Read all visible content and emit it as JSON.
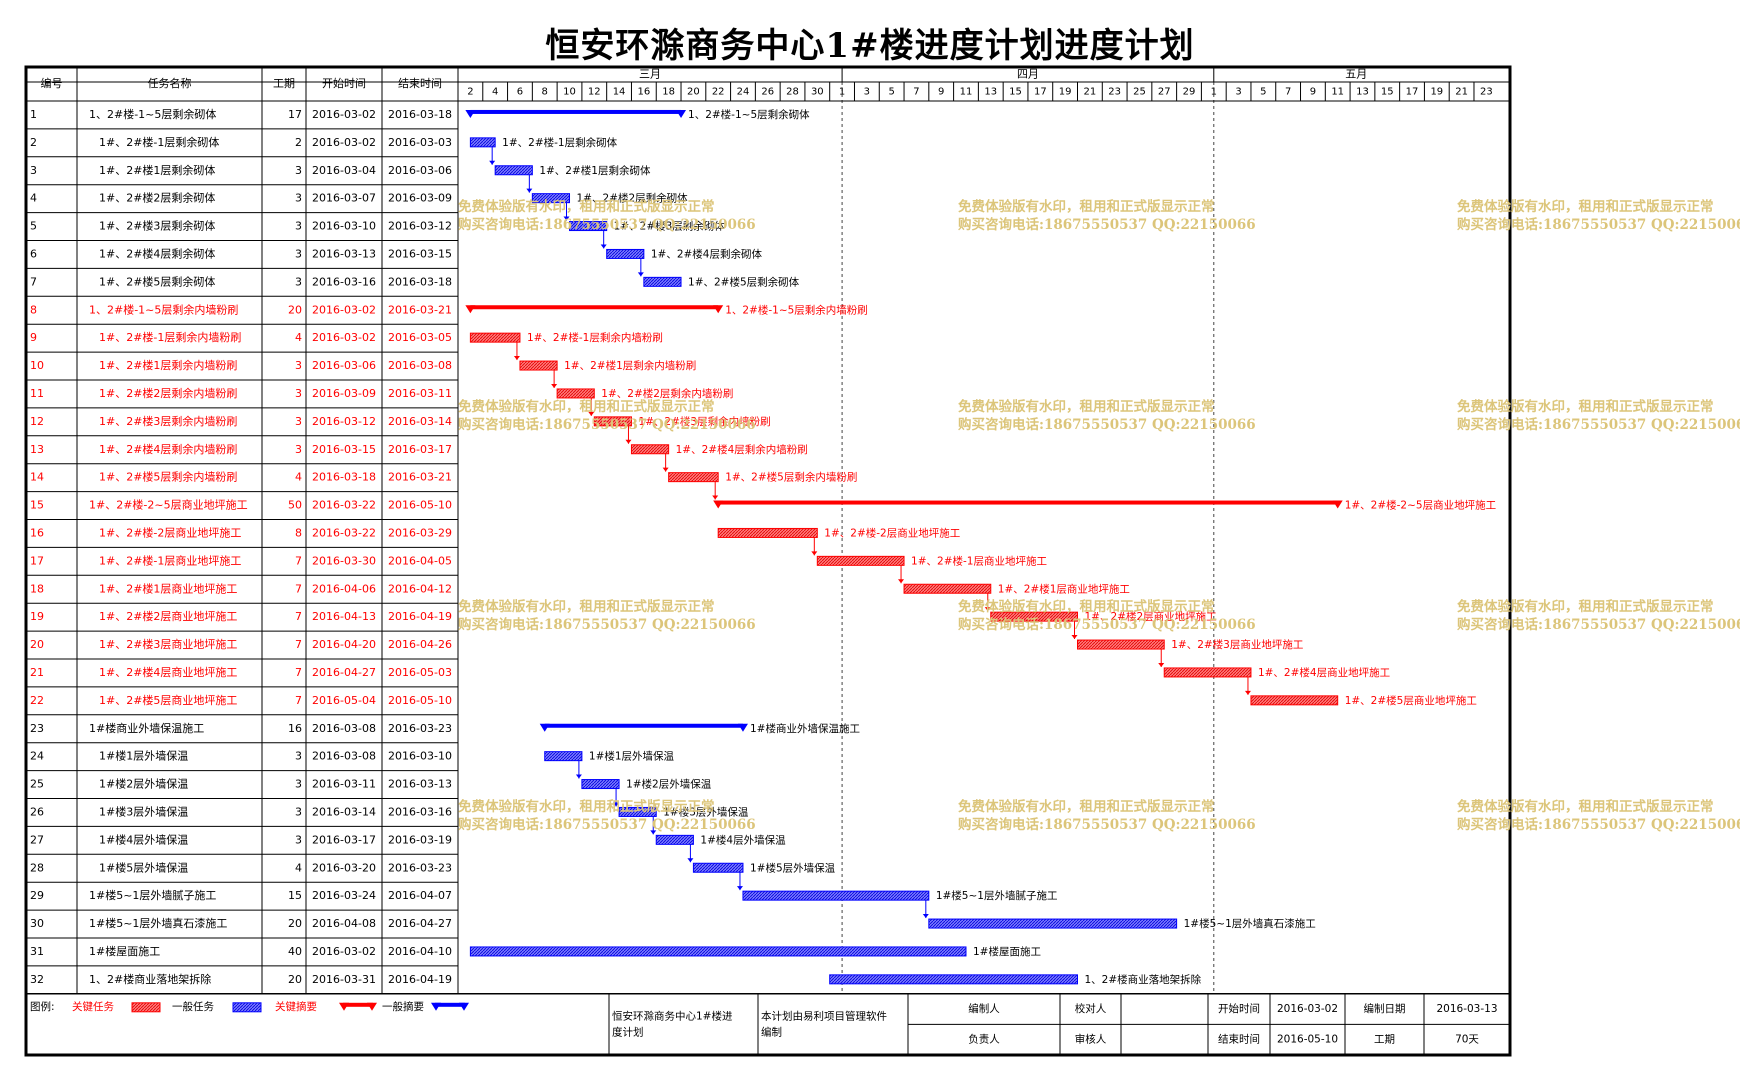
{
  "title": "恒安环滁商务中心1#楼进度计划进度计划",
  "colors": {
    "critical": "#ff0000",
    "normal": "#0000ff",
    "critical_fill": "#ff6f6f",
    "normal_fill": "#6f6fff",
    "watermark": "#dcc57a"
  },
  "table": {
    "headers": {
      "id": "编号",
      "name": "任务名称",
      "duration": "工期",
      "start": "开始时间",
      "end": "结束时间"
    }
  },
  "timescale": {
    "months": [
      "三月",
      "四月",
      "五月"
    ],
    "day_labels": [
      "2",
      "4",
      "6",
      "8",
      "10",
      "12",
      "14",
      "16",
      "18",
      "20",
      "22",
      "24",
      "26",
      "28",
      "30",
      "1",
      "3",
      "5",
      "7",
      "9",
      "11",
      "13",
      "15",
      "17",
      "19",
      "21",
      "23",
      "25",
      "27",
      "29",
      "1",
      "3",
      "5",
      "7",
      "9",
      "11",
      "13",
      "15",
      "17",
      "19",
      "21",
      "23"
    ]
  },
  "chart_data": {
    "type": "gantt",
    "title": "恒安环滁商务中心1#楼进度计划进度计划",
    "x_axis": {
      "start": "2016-03-01",
      "end": "2016-05-24",
      "unit": "day"
    },
    "tasks": [
      {
        "id": "1",
        "name": "1、2#楼-1~5层剩余砌体",
        "duration": 17,
        "start": "2016-03-02",
        "end": "2016-03-18",
        "critical": false,
        "summary": true,
        "indent": 0,
        "bar_label": "1、2#楼-1~5层剩余砌体"
      },
      {
        "id": "2",
        "name": "1#、2#楼-1层剩余砌体",
        "duration": 2,
        "start": "2016-03-02",
        "end": "2016-03-03",
        "critical": false,
        "summary": false,
        "indent": 1,
        "bar_label": "1#、2#楼-1层剩余砌体"
      },
      {
        "id": "3",
        "name": "1#、2#楼1层剩余砌体",
        "duration": 3,
        "start": "2016-03-04",
        "end": "2016-03-06",
        "critical": false,
        "summary": false,
        "indent": 1,
        "bar_label": "1#、2#楼1层剩余砌体"
      },
      {
        "id": "4",
        "name": "1#、2#楼2层剩余砌体",
        "duration": 3,
        "start": "2016-03-07",
        "end": "2016-03-09",
        "critical": false,
        "summary": false,
        "indent": 1,
        "bar_label": "1#、2#楼2层剩余砌体"
      },
      {
        "id": "5",
        "name": "1#、2#楼3层剩余砌体",
        "duration": 3,
        "start": "2016-03-10",
        "end": "2016-03-12",
        "critical": false,
        "summary": false,
        "indent": 1,
        "bar_label": "1#、2#楼3层剩余砌体"
      },
      {
        "id": "6",
        "name": "1#、2#楼4层剩余砌体",
        "duration": 3,
        "start": "2016-03-13",
        "end": "2016-03-15",
        "critical": false,
        "summary": false,
        "indent": 1,
        "bar_label": "1#、2#楼4层剩余砌体"
      },
      {
        "id": "7",
        "name": "1#、2#楼5层剩余砌体",
        "duration": 3,
        "start": "2016-03-16",
        "end": "2016-03-18",
        "critical": false,
        "summary": false,
        "indent": 1,
        "bar_label": "1#、2#楼5层剩余砌体"
      },
      {
        "id": "8",
        "name": "1、2#楼-1~5层剩余内墙粉刷",
        "duration": 20,
        "start": "2016-03-02",
        "end": "2016-03-21",
        "critical": true,
        "summary": true,
        "indent": 0,
        "bar_label": "1、2#楼-1~5层剩余内墙粉刷"
      },
      {
        "id": "9",
        "name": "1#、2#楼-1层剩余内墙粉刷",
        "duration": 4,
        "start": "2016-03-02",
        "end": "2016-03-05",
        "critical": true,
        "summary": false,
        "indent": 1,
        "bar_label": "1#、2#楼-1层剩余内墙粉刷"
      },
      {
        "id": "10",
        "name": "1#、2#楼1层剩余内墙粉刷",
        "duration": 3,
        "start": "2016-03-06",
        "end": "2016-03-08",
        "critical": true,
        "summary": false,
        "indent": 1,
        "bar_label": "1#、2#楼1层剩余内墙粉刷"
      },
      {
        "id": "11",
        "name": "1#、2#楼2层剩余内墙粉刷",
        "duration": 3,
        "start": "2016-03-09",
        "end": "2016-03-11",
        "critical": true,
        "summary": false,
        "indent": 1,
        "bar_label": "1#、2#楼2层剩余内墙粉刷"
      },
      {
        "id": "12",
        "name": "1#、2#楼3层剩余内墙粉刷",
        "duration": 3,
        "start": "2016-03-12",
        "end": "2016-03-14",
        "critical": true,
        "summary": false,
        "indent": 1,
        "bar_label": "1#、2#楼3层剩余内墙粉刷"
      },
      {
        "id": "13",
        "name": "1#、2#楼4层剩余内墙粉刷",
        "duration": 3,
        "start": "2016-03-15",
        "end": "2016-03-17",
        "critical": true,
        "summary": false,
        "indent": 1,
        "bar_label": "1#、2#楼4层剩余内墙粉刷"
      },
      {
        "id": "14",
        "name": "1#、2#楼5层剩余内墙粉刷",
        "duration": 4,
        "start": "2016-03-18",
        "end": "2016-03-21",
        "critical": true,
        "summary": false,
        "indent": 1,
        "bar_label": "1#、2#楼5层剩余内墙粉刷"
      },
      {
        "id": "15",
        "name": "1#、2#楼-2~5层商业地坪施工",
        "duration": 50,
        "start": "2016-03-22",
        "end": "2016-05-10",
        "critical": true,
        "summary": true,
        "indent": 0,
        "bar_label": "1#、2#楼-2~5层商业地坪施工"
      },
      {
        "id": "16",
        "name": "1#、2#楼-2层商业地坪施工",
        "duration": 8,
        "start": "2016-03-22",
        "end": "2016-03-29",
        "critical": true,
        "summary": false,
        "indent": 1,
        "bar_label": "1#、2#楼-2层商业地坪施工"
      },
      {
        "id": "17",
        "name": "1#、2#楼-1层商业地坪施工",
        "duration": 7,
        "start": "2016-03-30",
        "end": "2016-04-05",
        "critical": true,
        "summary": false,
        "indent": 1,
        "bar_label": "1#、2#楼-1层商业地坪施工"
      },
      {
        "id": "18",
        "name": "1#、2#楼1层商业地坪施工",
        "duration": 7,
        "start": "2016-04-06",
        "end": "2016-04-12",
        "critical": true,
        "summary": false,
        "indent": 1,
        "bar_label": "1#、2#楼1层商业地坪施工"
      },
      {
        "id": "19",
        "name": "1#、2#楼2层商业地坪施工",
        "duration": 7,
        "start": "2016-04-13",
        "end": "2016-04-19",
        "critical": true,
        "summary": false,
        "indent": 1,
        "bar_label": "1#、2#楼2层商业地坪施工"
      },
      {
        "id": "20",
        "name": "1#、2#楼3层商业地坪施工",
        "duration": 7,
        "start": "2016-04-20",
        "end": "2016-04-26",
        "critical": true,
        "summary": false,
        "indent": 1,
        "bar_label": "1#、2#楼3层商业地坪施工"
      },
      {
        "id": "21",
        "name": "1#、2#楼4层商业地坪施工",
        "duration": 7,
        "start": "2016-04-27",
        "end": "2016-05-03",
        "critical": true,
        "summary": false,
        "indent": 1,
        "bar_label": "1#、2#楼4层商业地坪施工"
      },
      {
        "id": "22",
        "name": "1#、2#楼5层商业地坪施工",
        "duration": 7,
        "start": "2016-05-04",
        "end": "2016-05-10",
        "critical": true,
        "summary": false,
        "indent": 1,
        "bar_label": "1#、2#楼5层商业地坪施工"
      },
      {
        "id": "23",
        "name": "1#楼商业外墙保温施工",
        "duration": 16,
        "start": "2016-03-08",
        "end": "2016-03-23",
        "critical": false,
        "summary": true,
        "indent": 0,
        "bar_label": "1#楼商业外墙保温施工"
      },
      {
        "id": "24",
        "name": "1#楼1层外墙保温",
        "duration": 3,
        "start": "2016-03-08",
        "end": "2016-03-10",
        "critical": false,
        "summary": false,
        "indent": 1,
        "bar_label": "1#楼1层外墙保温"
      },
      {
        "id": "25",
        "name": "1#楼2层外墙保温",
        "duration": 3,
        "start": "2016-03-11",
        "end": "2016-03-13",
        "critical": false,
        "summary": false,
        "indent": 1,
        "bar_label": "1#楼2层外墙保温"
      },
      {
        "id": "26",
        "name": "1#楼3层外墙保温",
        "duration": 3,
        "start": "2016-03-14",
        "end": "2016-03-16",
        "critical": false,
        "summary": false,
        "indent": 1,
        "bar_label": "1#楼3层外墙保温"
      },
      {
        "id": "27",
        "name": "1#楼4层外墙保温",
        "duration": 3,
        "start": "2016-03-17",
        "end": "2016-03-19",
        "critical": false,
        "summary": false,
        "indent": 1,
        "bar_label": "1#楼4层外墙保温"
      },
      {
        "id": "28",
        "name": "1#楼5层外墙保温",
        "duration": 4,
        "start": "2016-03-20",
        "end": "2016-03-23",
        "critical": false,
        "summary": false,
        "indent": 1,
        "bar_label": "1#楼5层外墙保温"
      },
      {
        "id": "29",
        "name": "1#楼5~1层外墙腻子施工",
        "duration": 15,
        "start": "2016-03-24",
        "end": "2016-04-07",
        "critical": false,
        "summary": false,
        "indent": 0,
        "bar_label": "1#楼5~1层外墙腻子施工"
      },
      {
        "id": "30",
        "name": "1#楼5~1层外墙真石漆施工",
        "duration": 20,
        "start": "2016-04-08",
        "end": "2016-04-27",
        "critical": false,
        "summary": false,
        "indent": 0,
        "bar_label": "1#楼5~1层外墙真石漆施工"
      },
      {
        "id": "31",
        "name": "1#楼屋面施工",
        "duration": 40,
        "start": "2016-03-02",
        "end": "2016-04-10",
        "critical": false,
        "summary": false,
        "indent": 0,
        "bar_label": "1#楼屋面施工"
      },
      {
        "id": "32",
        "name": "1、2#楼商业落地架拆除",
        "duration": 20,
        "start": "2016-03-31",
        "end": "2016-04-19",
        "critical": false,
        "summary": false,
        "indent": 0,
        "bar_label": "1、2#楼商业落地架拆除"
      }
    ],
    "links": [
      [
        2,
        3
      ],
      [
        3,
        4
      ],
      [
        4,
        5
      ],
      [
        5,
        6
      ],
      [
        6,
        7
      ],
      [
        9,
        10
      ],
      [
        10,
        11
      ],
      [
        11,
        12
      ],
      [
        12,
        13
      ],
      [
        13,
        14
      ],
      [
        14,
        15
      ],
      [
        16,
        17
      ],
      [
        17,
        18
      ],
      [
        18,
        19
      ],
      [
        19,
        20
      ],
      [
        20,
        21
      ],
      [
        21,
        22
      ],
      [
        24,
        25
      ],
      [
        25,
        26
      ],
      [
        26,
        27
      ],
      [
        27,
        28
      ],
      [
        28,
        29
      ],
      [
        29,
        30
      ]
    ]
  },
  "legend": {
    "label": "图例:",
    "items": [
      {
        "text": "关键任务",
        "type": "critical-task"
      },
      {
        "text": "一般任务",
        "type": "normal-task"
      },
      {
        "text": "关键摘要",
        "type": "critical-summary"
      },
      {
        "text": "一般摘要",
        "type": "normal-summary"
      }
    ]
  },
  "footer": {
    "project_name": "恒安环滁商务中心1#楼进度计划",
    "software_note": "本计划由易利项目管理软件编制",
    "labels": {
      "editor": "编制人",
      "checker": "校对人",
      "responsible": "负责人",
      "reviewer": "审核人",
      "start_time": "开始时间",
      "end_time": "结束时间",
      "compile_date": "编制日期",
      "duration": "工期"
    },
    "values": {
      "editor": "",
      "checker": "",
      "responsible": "",
      "reviewer": "",
      "start_time": "2016-03-02",
      "end_time": "2016-05-10",
      "compile_date": "2016-03-13",
      "duration": "70天"
    }
  },
  "watermark": {
    "line1": "免费体验版有水印，租用和正式版显示正常",
    "line2": "购买咨询电话:18675550537 QQ:22150066"
  }
}
